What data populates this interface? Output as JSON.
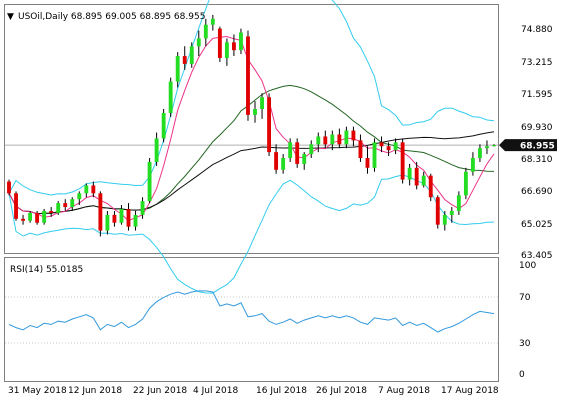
{
  "window": {
    "symbol_line": "USOil,Daily  68.895 69.005 68.895 68.955",
    "collapse_glyph": "▼"
  },
  "main_axis": {
    "tick_labels": [
      "74.880",
      "73.215",
      "71.595",
      "69.930",
      "68.310",
      "66.690",
      "65.025",
      "63.405"
    ],
    "price_tag": "68.955"
  },
  "rsi": {
    "label": "RSI(14) 55.0185",
    "tick_labels": [
      "100",
      "70",
      "30",
      "0"
    ]
  },
  "time_axis": {
    "labels": [
      "31 May 2018",
      "12 Jun 2018",
      "22 Jun 2018",
      "4 Jul 2018",
      "16 Jul 2018",
      "26 Jul 2018",
      "7 Aug 2018",
      "17 Aug 2018"
    ]
  },
  "colors": {
    "bull": "#22dd22",
    "bear": "#e00000",
    "bollinger": "#33ccee",
    "fast_ma": "#ee3388",
    "ma_mid": "#226622",
    "ma_long": "#111111",
    "rsi_line": "#3399dd",
    "last_price_tag": "#111111"
  },
  "chart_data": [
    {
      "type": "candlestick",
      "title": "USOil,Daily",
      "ylim": [
        63.405,
        75.6
      ],
      "last_price": 68.955,
      "ohlc": [
        [
          67.1,
          67.2,
          66.4,
          66.5
        ],
        [
          66.5,
          66.6,
          65.1,
          65.2
        ],
        [
          65.2,
          65.4,
          64.9,
          65.1
        ],
        [
          65.1,
          65.6,
          65.0,
          65.5
        ],
        [
          65.5,
          65.6,
          64.9,
          65.0
        ],
        [
          65.0,
          65.7,
          64.9,
          65.6
        ],
        [
          65.6,
          65.8,
          65.3,
          65.5
        ],
        [
          65.5,
          66.1,
          65.4,
          66.0
        ],
        [
          66.0,
          66.2,
          65.6,
          65.8
        ],
        [
          65.8,
          66.3,
          65.6,
          66.2
        ],
        [
          66.2,
          66.6,
          65.9,
          66.5
        ],
        [
          66.5,
          67.0,
          66.3,
          66.9
        ],
        [
          66.9,
          67.1,
          66.3,
          66.5
        ],
        [
          66.5,
          66.6,
          64.3,
          64.6
        ],
        [
          64.6,
          65.6,
          64.4,
          65.4
        ],
        [
          65.4,
          65.6,
          64.8,
          65.0
        ],
        [
          65.0,
          65.9,
          64.9,
          65.7
        ],
        [
          65.7,
          66.0,
          64.6,
          64.8
        ],
        [
          64.8,
          65.6,
          64.6,
          65.4
        ],
        [
          65.4,
          66.3,
          65.2,
          66.1
        ],
        [
          66.1,
          68.3,
          66.0,
          68.1
        ],
        [
          68.1,
          69.6,
          67.9,
          69.3
        ],
        [
          69.3,
          70.8,
          69.1,
          70.6
        ],
        [
          70.6,
          72.4,
          70.4,
          72.2
        ],
        [
          72.2,
          73.7,
          71.9,
          73.5
        ],
        [
          73.5,
          74.0,
          72.8,
          73.1
        ],
        [
          73.1,
          74.2,
          72.9,
          74.0
        ],
        [
          74.0,
          74.8,
          73.5,
          74.4
        ],
        [
          74.4,
          75.4,
          74.0,
          75.1
        ],
        [
          75.1,
          75.6,
          74.8,
          75.4
        ],
        [
          74.9,
          75.0,
          73.2,
          73.4
        ],
        [
          73.4,
          74.4,
          73.0,
          74.2
        ],
        [
          74.2,
          74.6,
          73.5,
          73.8
        ],
        [
          73.8,
          74.9,
          73.6,
          74.7
        ],
        [
          74.5,
          74.8,
          70.2,
          70.5
        ],
        [
          70.5,
          71.2,
          70.1,
          70.8
        ],
        [
          70.8,
          71.6,
          70.3,
          71.4
        ],
        [
          71.4,
          71.6,
          68.4,
          68.6
        ],
        [
          68.6,
          69.0,
          67.5,
          67.7
        ],
        [
          67.7,
          68.5,
          67.5,
          68.3
        ],
        [
          68.3,
          69.3,
          68.1,
          69.1
        ],
        [
          69.1,
          69.3,
          67.8,
          68.0
        ],
        [
          68.0,
          68.6,
          67.7,
          68.5
        ],
        [
          68.5,
          69.2,
          68.3,
          69.0
        ],
        [
          69.0,
          69.6,
          68.6,
          69.4
        ],
        [
          69.4,
          69.7,
          68.8,
          69.0
        ],
        [
          69.0,
          69.7,
          68.7,
          69.5
        ],
        [
          69.5,
          69.8,
          68.8,
          69.0
        ],
        [
          69.0,
          69.9,
          68.8,
          69.7
        ],
        [
          69.7,
          69.9,
          68.9,
          69.2
        ],
        [
          69.2,
          69.5,
          68.1,
          68.3
        ],
        [
          68.3,
          68.9,
          67.5,
          67.8
        ],
        [
          67.8,
          69.3,
          67.6,
          69.1
        ],
        [
          69.1,
          69.4,
          68.6,
          68.9
        ],
        [
          68.9,
          69.1,
          68.4,
          68.7
        ],
        [
          68.7,
          69.3,
          68.5,
          69.1
        ],
        [
          69.1,
          69.3,
          67.0,
          67.2
        ],
        [
          67.2,
          68.0,
          66.9,
          67.8
        ],
        [
          67.8,
          68.1,
          66.7,
          66.9
        ],
        [
          66.9,
          67.6,
          66.8,
          67.4
        ],
        [
          67.4,
          67.5,
          66.1,
          66.3
        ],
        [
          66.3,
          66.4,
          64.7,
          64.9
        ],
        [
          64.9,
          65.6,
          64.6,
          65.4
        ],
        [
          65.4,
          65.8,
          65.0,
          65.6
        ],
        [
          65.6,
          66.6,
          65.4,
          66.4
        ],
        [
          66.4,
          67.8,
          66.2,
          67.6
        ],
        [
          67.6,
          68.6,
          67.4,
          68.3
        ],
        [
          68.3,
          69.0,
          68.1,
          68.8
        ],
        [
          68.8,
          69.2,
          68.5,
          68.9
        ],
        [
          68.9,
          69.005,
          68.895,
          68.955
        ]
      ]
    },
    {
      "type": "line",
      "title": "RSI(14) 55.0185",
      "ylim": [
        0,
        100
      ],
      "values": [
        45,
        42,
        40,
        44,
        42,
        46,
        45,
        48,
        47,
        50,
        52,
        54,
        51,
        40,
        45,
        43,
        47,
        42,
        45,
        50,
        60,
        66,
        70,
        73,
        75,
        73,
        75,
        76,
        76,
        75,
        62,
        64,
        62,
        65,
        52,
        53,
        55,
        48,
        45,
        47,
        50,
        46,
        49,
        51,
        53,
        51,
        53,
        51,
        53,
        51,
        47,
        45,
        51,
        50,
        49,
        51,
        44,
        47,
        44,
        46,
        42,
        38,
        41,
        43,
        46,
        50,
        54,
        57,
        56,
        55
      ]
    }
  ]
}
